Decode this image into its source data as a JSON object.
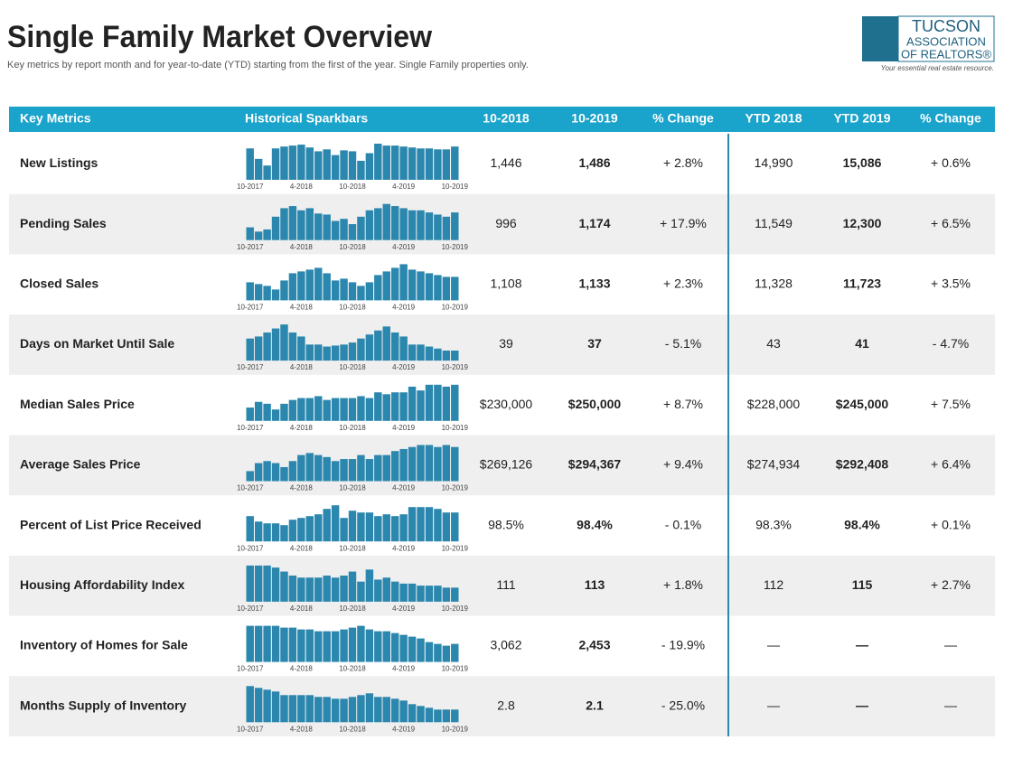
{
  "header": {
    "title": "Single Family Market Overview",
    "subtitle": "Key metrics by report month and for year-to-date (YTD) starting from the first of the year. Single Family properties only.",
    "logo": {
      "line1": "TUCSON",
      "line2": "ASSOCIATION",
      "line3": "OF REALTORS®",
      "tagline": "Your essential real estate resource."
    }
  },
  "table": {
    "columns": [
      "Key Metrics",
      "Historical Sparkbars",
      "10-2018",
      "10-2019",
      "% Change",
      "YTD 2018",
      "YTD 2019",
      "% Change"
    ],
    "spark_labels": [
      "10-2017",
      "4-2018",
      "10-2018",
      "4-2019",
      "10-2019"
    ],
    "rows": [
      {
        "metric": "New Listings",
        "sparkbars": [
          33,
          22,
          15,
          33,
          35,
          36,
          37,
          34,
          30,
          32,
          26,
          31,
          30,
          20,
          28,
          38,
          36,
          36,
          35,
          34,
          33,
          33,
          32,
          32,
          35
        ],
        "values": [
          "1,446",
          "1,486",
          "+ 2.8%",
          "14,990",
          "15,086",
          "+ 0.6%"
        ]
      },
      {
        "metric": "Pending Sales",
        "sparkbars": [
          12,
          8,
          10,
          22,
          30,
          32,
          28,
          30,
          25,
          24,
          18,
          20,
          15,
          22,
          28,
          30,
          34,
          32,
          30,
          28,
          28,
          26,
          24,
          22,
          26
        ],
        "values": [
          "996",
          "1,174",
          "+ 17.9%",
          "11,549",
          "12,300",
          "+ 6.5%"
        ]
      },
      {
        "metric": "Closed Sales",
        "sparkbars": [
          20,
          18,
          16,
          12,
          22,
          30,
          32,
          34,
          36,
          30,
          22,
          24,
          20,
          16,
          20,
          28,
          32,
          36,
          40,
          34,
          32,
          30,
          28,
          26,
          26
        ],
        "values": [
          "1,108",
          "1,133",
          "+ 2.3%",
          "11,328",
          "11,723",
          "+ 3.5%"
        ]
      },
      {
        "metric": "Days on Market Until Sale",
        "sparkbars": [
          22,
          24,
          28,
          32,
          36,
          28,
          24,
          16,
          16,
          14,
          15,
          16,
          18,
          22,
          26,
          30,
          34,
          28,
          24,
          16,
          16,
          14,
          12,
          10,
          10
        ],
        "values": [
          "39",
          "37",
          "- 5.1%",
          "43",
          "41",
          "- 4.7%"
        ]
      },
      {
        "metric": "Median Sales Price",
        "sparkbars": [
          14,
          20,
          18,
          12,
          18,
          22,
          24,
          24,
          26,
          22,
          24,
          24,
          24,
          26,
          24,
          30,
          28,
          30,
          30,
          36,
          32,
          38,
          38,
          36,
          38
        ],
        "values": [
          "$230,000",
          "$250,000",
          "+ 8.7%",
          "$228,000",
          "$245,000",
          "+ 7.5%"
        ]
      },
      {
        "metric": "Average Sales Price",
        "sparkbars": [
          10,
          18,
          20,
          18,
          14,
          20,
          26,
          28,
          26,
          24,
          20,
          22,
          22,
          26,
          22,
          26,
          26,
          30,
          32,
          34,
          36,
          36,
          34,
          36,
          34
        ],
        "values": [
          "$269,126",
          "$294,367",
          "+ 9.4%",
          "$274,934",
          "$292,408",
          "+ 6.4%"
        ]
      },
      {
        "metric": "Percent of List Price Received",
        "sparkbars": [
          28,
          22,
          20,
          20,
          18,
          24,
          26,
          28,
          30,
          36,
          40,
          26,
          34,
          32,
          32,
          28,
          30,
          28,
          30,
          38,
          38,
          38,
          36,
          32,
          32
        ],
        "values": [
          "98.5%",
          "98.4%",
          "- 0.1%",
          "98.3%",
          "98.4%",
          "+ 0.1%"
        ]
      },
      {
        "metric": "Housing Affordability Index",
        "sparkbars": [
          36,
          36,
          36,
          34,
          30,
          26,
          24,
          24,
          24,
          26,
          24,
          26,
          30,
          20,
          32,
          22,
          24,
          20,
          18,
          18,
          16,
          16,
          16,
          14,
          14
        ],
        "values": [
          "111",
          "113",
          "+ 1.8%",
          "112",
          "115",
          "+ 2.7%"
        ]
      },
      {
        "metric": "Inventory of Homes for Sale",
        "sparkbars": [
          40,
          40,
          40,
          40,
          38,
          38,
          36,
          36,
          34,
          34,
          34,
          36,
          38,
          40,
          36,
          34,
          34,
          32,
          30,
          28,
          26,
          22,
          20,
          18,
          20
        ],
        "values": [
          "3,062",
          "2,453",
          "- 19.9%",
          "—",
          "—",
          "—"
        ]
      },
      {
        "metric": "Months Supply of Inventory",
        "sparkbars": [
          40,
          38,
          36,
          34,
          30,
          30,
          30,
          30,
          28,
          28,
          26,
          26,
          28,
          30,
          32,
          28,
          28,
          26,
          24,
          20,
          18,
          16,
          14,
          14,
          14
        ],
        "values": [
          "2.8",
          "2.1",
          "- 25.0%",
          "—",
          "—",
          "—"
        ]
      }
    ]
  }
}
